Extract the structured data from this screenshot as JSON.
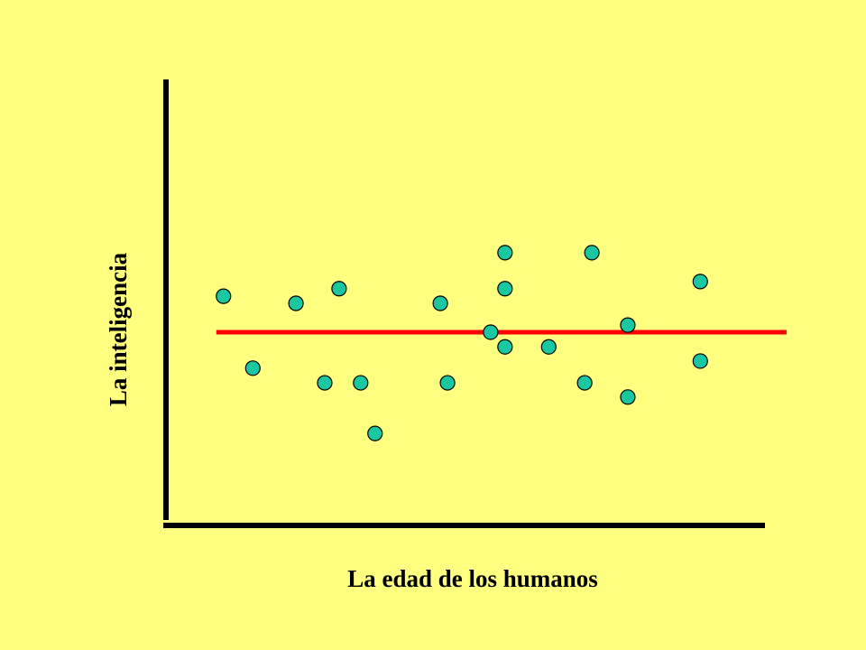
{
  "chart_data": {
    "type": "scatter",
    "x_label": "La edad de los humanos",
    "y_label": "La inteligencia",
    "xlim": [
      0,
      100
    ],
    "ylim": [
      0,
      100
    ],
    "series": [
      {
        "color": "#19c8a0",
        "x": [
          9.6,
          14.5,
          21.7,
          26.5,
          28.9,
          32.5,
          34.9,
          45.8,
          47.0,
          54.2,
          56.6,
          56.6,
          56.6,
          63.9,
          69.9,
          71.1,
          77.1,
          77.1,
          89.2,
          89.2
        ],
        "values": [
          51.6,
          35.4,
          50.0,
          32.1,
          53.3,
          32.1,
          20.7,
          50.0,
          32.1,
          43.5,
          61.4,
          53.3,
          40.2,
          40.2,
          32.1,
          61.4,
          45.1,
          28.9,
          54.9,
          37.0
        ]
      }
    ],
    "trend_line": {
      "color": "#ff0000",
      "x": [
        8.4,
        103.6
      ],
      "values": [
        43.5,
        43.5
      ]
    }
  }
}
